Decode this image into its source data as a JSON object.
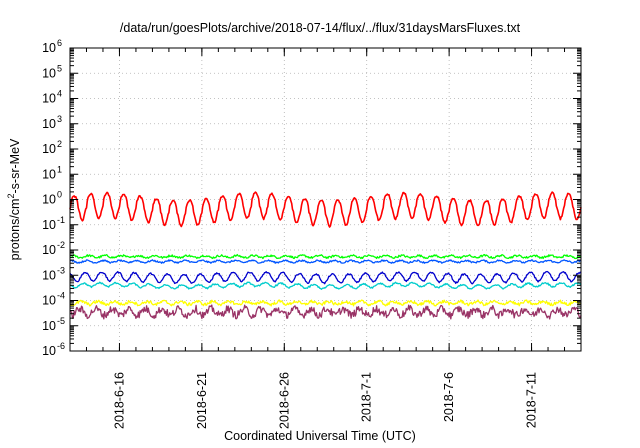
{
  "chart_data": {
    "type": "line",
    "title": "/data/run/goesPlots/archive/2018-07-14/flux/../flux/31daysMarsFluxes.txt",
    "xlabel": "Coordinated Universal Time (UTC)",
    "ylabel": {
      "prefix": "protons/cm",
      "sup": "2",
      "suffix": "-s-sr-MeV"
    },
    "y_scale": "log",
    "ylim": [
      1e-06,
      1000000.0
    ],
    "yticks": [
      {
        "value": 1e-06,
        "base": "10",
        "exp": "-6"
      },
      {
        "value": 1e-05,
        "base": "10",
        "exp": "-5"
      },
      {
        "value": 0.0001,
        "base": "10",
        "exp": "-4"
      },
      {
        "value": 0.001,
        "base": "10",
        "exp": "-3"
      },
      {
        "value": 0.01,
        "base": "10",
        "exp": "-2"
      },
      {
        "value": 0.1,
        "base": "10",
        "exp": "-1"
      },
      {
        "value": 1,
        "base": "10",
        "exp": "0"
      },
      {
        "value": 10,
        "base": "10",
        "exp": "1"
      },
      {
        "value": 100,
        "base": "10",
        "exp": "2"
      },
      {
        "value": 1000,
        "base": "10",
        "exp": "3"
      },
      {
        "value": 10000,
        "base": "10",
        "exp": "4"
      },
      {
        "value": 100000,
        "base": "10",
        "exp": "5"
      },
      {
        "value": 1000000,
        "base": "10",
        "exp": "6"
      }
    ],
    "xlim": [
      "2018-06-13",
      "2018-07-14"
    ],
    "xticks": [
      "2018-6-16",
      "2018-6-21",
      "2018-6-26",
      "2018-7-1",
      "2018-7-6",
      "2018-7-11"
    ],
    "xtick_dates": [
      "2018-06-16",
      "2018-06-21",
      "2018-06-26",
      "2018-07-01",
      "2018-07-06",
      "2018-07-11"
    ],
    "grid": true,
    "series": [
      {
        "color": "#ff0000",
        "shape": "oscillating",
        "center": 0.4,
        "amplitude_decades": 1.0,
        "period_days": 1,
        "noise": 0.08
      },
      {
        "color": "#00ff00",
        "shape": "noisy",
        "center": 0.0055,
        "amplitude_decades": 0.08,
        "period_days": 1,
        "noise": 0.08
      },
      {
        "color": "#0055ff",
        "shape": "noisy",
        "center": 0.0035,
        "amplitude_decades": 0.08,
        "period_days": 1,
        "noise": 0.06
      },
      {
        "color": "#0000cc",
        "shape": "oscillating",
        "center": 0.0008,
        "amplitude_decades": 0.35,
        "period_days": 1,
        "noise": 0.06
      },
      {
        "color": "#00cccc",
        "shape": "oscillating",
        "center": 0.00038,
        "amplitude_decades": 0.15,
        "period_days": 1,
        "noise": 0.06
      },
      {
        "color": "#ffff00",
        "shape": "noisy",
        "center": 8e-05,
        "amplitude_decades": 0.12,
        "period_days": 1,
        "noise": 0.12
      },
      {
        "color": "#993366",
        "shape": "noisy",
        "center": 3.5e-05,
        "amplitude_decades": 0.25,
        "period_days": 1,
        "noise": 0.3
      }
    ]
  }
}
